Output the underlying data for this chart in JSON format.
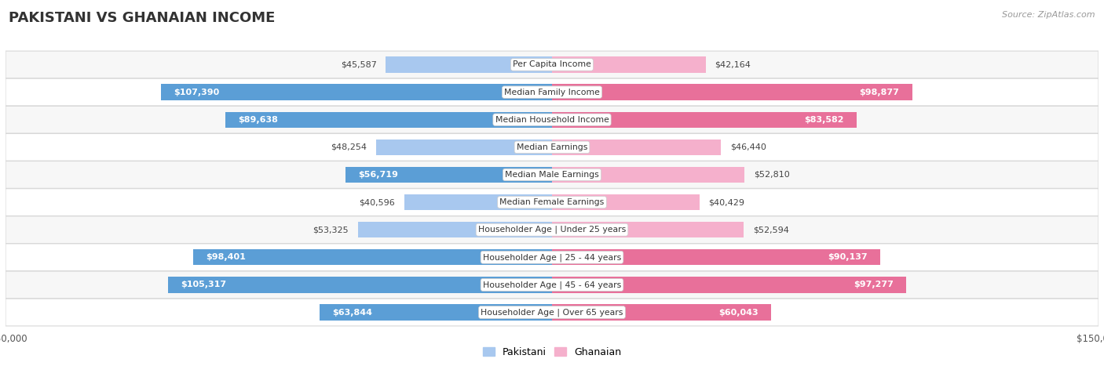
{
  "title": "PAKISTANI VS GHANAIAN INCOME",
  "source": "Source: ZipAtlas.com",
  "categories": [
    "Per Capita Income",
    "Median Family Income",
    "Median Household Income",
    "Median Earnings",
    "Median Male Earnings",
    "Median Female Earnings",
    "Householder Age | Under 25 years",
    "Householder Age | 25 - 44 years",
    "Householder Age | 45 - 64 years",
    "Householder Age | Over 65 years"
  ],
  "pakistani_values": [
    45587,
    107390,
    89638,
    48254,
    56719,
    40596,
    53325,
    98401,
    105317,
    63844
  ],
  "ghanaian_values": [
    42164,
    98877,
    83582,
    46440,
    52810,
    40429,
    52594,
    90137,
    97277,
    60043
  ],
  "pakistani_labels": [
    "$45,587",
    "$107,390",
    "$89,638",
    "$48,254",
    "$56,719",
    "$40,596",
    "$53,325",
    "$98,401",
    "$105,317",
    "$63,844"
  ],
  "ghanaian_labels": [
    "$42,164",
    "$98,877",
    "$83,582",
    "$46,440",
    "$52,810",
    "$40,429",
    "$52,594",
    "$90,137",
    "$97,277",
    "$60,043"
  ],
  "pakistani_color_light": "#A8C8EF",
  "pakistani_color_dark": "#5B9ED6",
  "ghanaian_color_light": "#F5B0CC",
  "ghanaian_color_dark": "#E8709A",
  "max_value": 150000,
  "bg_color": "#ffffff",
  "row_bg_even": "#f7f7f7",
  "row_bg_odd": "#ffffff",
  "title_fontsize": 13,
  "bar_height": 0.58,
  "inside_threshold": 55000,
  "label_fontsize": 8.0
}
